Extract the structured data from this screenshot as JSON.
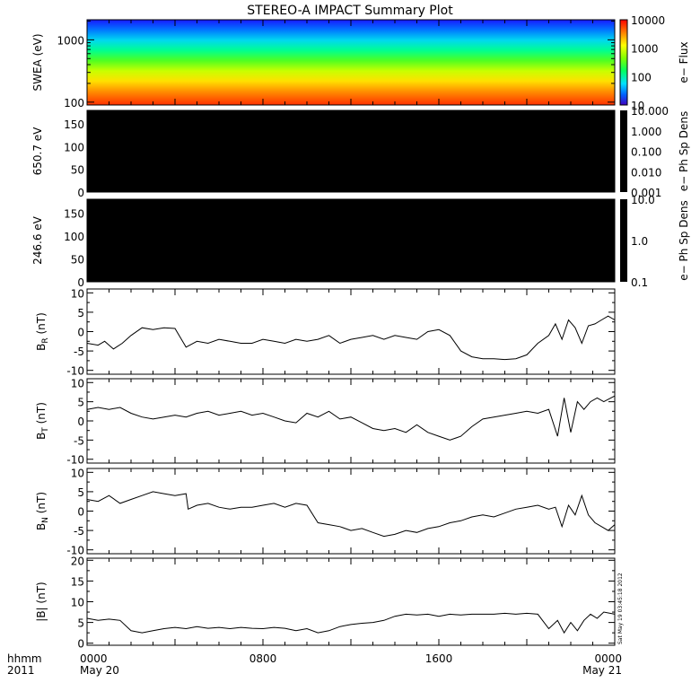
{
  "title": "STEREO-A IMPACT Summary Plot",
  "timestamp_note": "Sat May 19 03:45:18 2012",
  "time_axis": {
    "label_line1": "hhmm",
    "label_line2": "2011",
    "ticks": [
      {
        "hour": 0,
        "top": "0000",
        "bottom": "May 20"
      },
      {
        "hour": 8,
        "top": "0800",
        "bottom": ""
      },
      {
        "hour": 16,
        "top": "1600",
        "bottom": ""
      },
      {
        "hour": 24,
        "top": "0000",
        "bottom": "May 21"
      }
    ]
  },
  "chart_data": [
    {
      "id": "swea",
      "type": "heatmap",
      "ylabel": "SWEA (eV)",
      "yscale": "log",
      "ylim": [
        90,
        2100
      ],
      "yticks": [
        100,
        1000
      ],
      "yticklabels": [
        "100",
        "1000"
      ],
      "xlim_hours": [
        0,
        24
      ],
      "colorbar": {
        "label": "e− Flux",
        "scale": "log",
        "range": [
          10,
          10000
        ],
        "ticks": [
          "10000",
          "1000",
          "100",
          "10"
        ]
      },
      "colors": [
        "#0000ff",
        "#0060ff",
        "#00d8ff",
        "#00ff80",
        "#80ff00",
        "#ffff00",
        "#ff8000",
        "#ff2000"
      ]
    },
    {
      "id": "pad650",
      "type": "heatmap",
      "ylabel": "650.7  eV",
      "ylim": [
        0,
        180
      ],
      "yticks": [
        "0",
        "50",
        "100",
        "150"
      ],
      "fill": "#000000",
      "colorbar": {
        "label": "e− Ph Sp Dens",
        "scale": "log",
        "ticks": [
          "10.000",
          "1.000",
          "0.100",
          "0.010",
          "0.001"
        ]
      }
    },
    {
      "id": "pad246",
      "type": "heatmap",
      "ylabel": "246.6  eV",
      "ylim": [
        0,
        180
      ],
      "yticks": [
        "0",
        "50",
        "100",
        "150"
      ],
      "fill": "#000000",
      "colorbar": {
        "label": "e− Ph Sp Dens",
        "scale": "log",
        "ticks": [
          "10.0",
          "1.0",
          "0.1"
        ]
      }
    },
    {
      "id": "br",
      "type": "line",
      "ylabel": "B",
      "ylabel_sub": "R",
      "ylabel_unit": " (nT)",
      "ylim": [
        -11,
        11
      ],
      "yticks": [
        -10,
        -5,
        0,
        5,
        10
      ],
      "x_hours": [
        0,
        0.5,
        0.8,
        1.2,
        1.6,
        2.0,
        2.5,
        3.0,
        3.5,
        4.0,
        4.5,
        5.0,
        5.5,
        6.0,
        6.5,
        7.0,
        7.5,
        8.0,
        8.5,
        9.0,
        9.5,
        10.0,
        10.5,
        11.0,
        11.5,
        12.0,
        12.5,
        13.0,
        13.5,
        14.0,
        14.5,
        15.0,
        15.5,
        16.0,
        16.5,
        17.0,
        17.5,
        18.0,
        18.5,
        19.0,
        19.5,
        20.0,
        20.5,
        21.0,
        21.3,
        21.6,
        21.9,
        22.2,
        22.5,
        22.8,
        23.1,
        23.4,
        23.7,
        24.0
      ],
      "values": [
        -3.0,
        -3.5,
        -2.5,
        -4.5,
        -3.0,
        -1.0,
        1.0,
        0.5,
        1.0,
        0.8,
        -4.0,
        -2.5,
        -3.0,
        -2.0,
        -2.5,
        -3.0,
        -3.0,
        -2.0,
        -2.5,
        -3.0,
        -2.0,
        -2.5,
        -2.0,
        -1.0,
        -3.0,
        -2.0,
        -1.5,
        -1.0,
        -2.0,
        -1.0,
        -1.5,
        -2.0,
        0.0,
        0.5,
        -1.0,
        -5.0,
        -6.5,
        -7.0,
        -7.0,
        -7.2,
        -7.0,
        -6.0,
        -3.0,
        -1.0,
        2.0,
        -2.0,
        3.0,
        1.0,
        -3.0,
        1.5,
        2.0,
        3.0,
        4.0,
        3.0
      ]
    },
    {
      "id": "bt",
      "type": "line",
      "ylabel": "B",
      "ylabel_sub": "T",
      "ylabel_unit": " (nT)",
      "ylim": [
        -11,
        11
      ],
      "yticks": [
        -10,
        -5,
        0,
        5,
        10
      ],
      "x_hours": [
        0,
        0.5,
        1.0,
        1.5,
        2.0,
        2.5,
        3.0,
        3.5,
        4.0,
        4.5,
        5.0,
        5.5,
        6.0,
        6.5,
        7.0,
        7.5,
        8.0,
        8.5,
        9.0,
        9.5,
        10.0,
        10.5,
        11.0,
        11.5,
        12.0,
        12.5,
        13.0,
        13.5,
        14.0,
        14.5,
        15.0,
        15.5,
        16.0,
        16.5,
        17.0,
        17.5,
        18.0,
        18.5,
        19.0,
        19.5,
        20.0,
        20.5,
        21.0,
        21.4,
        21.7,
        22.0,
        22.3,
        22.6,
        22.9,
        23.2,
        23.5,
        24.0
      ],
      "values": [
        3.0,
        3.5,
        3.0,
        3.5,
        2.0,
        1.0,
        0.5,
        1.0,
        1.5,
        1.0,
        2.0,
        2.5,
        1.5,
        2.0,
        2.5,
        1.5,
        2.0,
        1.0,
        0.0,
        -0.5,
        2.0,
        1.0,
        2.5,
        0.5,
        1.0,
        -0.5,
        -2.0,
        -2.5,
        -2.0,
        -3.0,
        -1.0,
        -3.0,
        -4.0,
        -5.0,
        -4.0,
        -1.5,
        0.5,
        1.0,
        1.5,
        2.0,
        2.5,
        2.0,
        3.0,
        -4.0,
        6.0,
        -3.0,
        5.0,
        3.0,
        5.0,
        6.0,
        5.0,
        6.5
      ]
    },
    {
      "id": "bn",
      "type": "line",
      "ylabel": "B",
      "ylabel_sub": "N",
      "ylabel_unit": " (nT)",
      "ylim": [
        -11,
        11
      ],
      "yticks": [
        -10,
        -5,
        0,
        5,
        10
      ],
      "x_hours": [
        0,
        0.5,
        1.0,
        1.5,
        2.0,
        2.5,
        3.0,
        3.5,
        4.0,
        4.5,
        4.6,
        5.0,
        5.5,
        6.0,
        6.5,
        7.0,
        7.5,
        8.0,
        8.5,
        9.0,
        9.5,
        10.0,
        10.5,
        11.0,
        11.5,
        12.0,
        12.5,
        13.0,
        13.5,
        14.0,
        14.5,
        15.0,
        15.5,
        16.0,
        16.5,
        17.0,
        17.5,
        18.0,
        18.5,
        19.0,
        19.5,
        20.0,
        20.5,
        21.0,
        21.3,
        21.6,
        21.9,
        22.2,
        22.5,
        22.8,
        23.1,
        23.4,
        23.7,
        24.0
      ],
      "values": [
        3.0,
        2.5,
        4.0,
        2.0,
        3.0,
        4.0,
        5.0,
        4.5,
        4.0,
        4.5,
        0.5,
        1.5,
        2.0,
        1.0,
        0.5,
        1.0,
        1.0,
        1.5,
        2.0,
        1.0,
        2.0,
        1.5,
        -3.0,
        -3.5,
        -4.0,
        -5.0,
        -4.5,
        -5.5,
        -6.5,
        -6.0,
        -5.0,
        -5.5,
        -4.5,
        -4.0,
        -3.0,
        -2.5,
        -1.5,
        -1.0,
        -1.5,
        -0.5,
        0.5,
        1.0,
        1.5,
        0.5,
        1.0,
        -4.0,
        1.5,
        -1.0,
        4.0,
        -1.0,
        -3.0,
        -4.0,
        -5.0,
        -3.5
      ]
    },
    {
      "id": "bmag",
      "type": "line",
      "ylabel": "|B| (nT)",
      "ylim": [
        -0.5,
        20.5
      ],
      "yticks": [
        0,
        5,
        10,
        15,
        20
      ],
      "x_hours": [
        0,
        0.5,
        1.0,
        1.5,
        2.0,
        2.5,
        3.0,
        3.5,
        4.0,
        4.5,
        5.0,
        5.5,
        6.0,
        6.5,
        7.0,
        7.5,
        8.0,
        8.5,
        9.0,
        9.5,
        10.0,
        10.5,
        11.0,
        11.5,
        12.0,
        12.5,
        13.0,
        13.5,
        14.0,
        14.5,
        15.0,
        15.5,
        16.0,
        16.5,
        17.0,
        17.5,
        18.0,
        18.5,
        19.0,
        19.5,
        20.0,
        20.5,
        21.0,
        21.4,
        21.7,
        22.0,
        22.3,
        22.6,
        22.9,
        23.2,
        23.5,
        24.0
      ],
      "values": [
        6.0,
        5.5,
        5.8,
        5.5,
        3.0,
        2.5,
        3.0,
        3.5,
        3.8,
        3.5,
        4.0,
        3.6,
        3.8,
        3.5,
        3.8,
        3.6,
        3.5,
        3.8,
        3.6,
        3.0,
        3.5,
        2.5,
        3.0,
        4.0,
        4.5,
        4.8,
        5.0,
        5.5,
        6.5,
        7.0,
        6.8,
        7.0,
        6.5,
        7.0,
        6.8,
        7.0,
        7.0,
        7.0,
        7.2,
        7.0,
        7.2,
        7.0,
        3.5,
        5.5,
        2.5,
        5.0,
        3.0,
        5.5,
        7.0,
        6.0,
        7.5,
        7.0
      ]
    }
  ]
}
